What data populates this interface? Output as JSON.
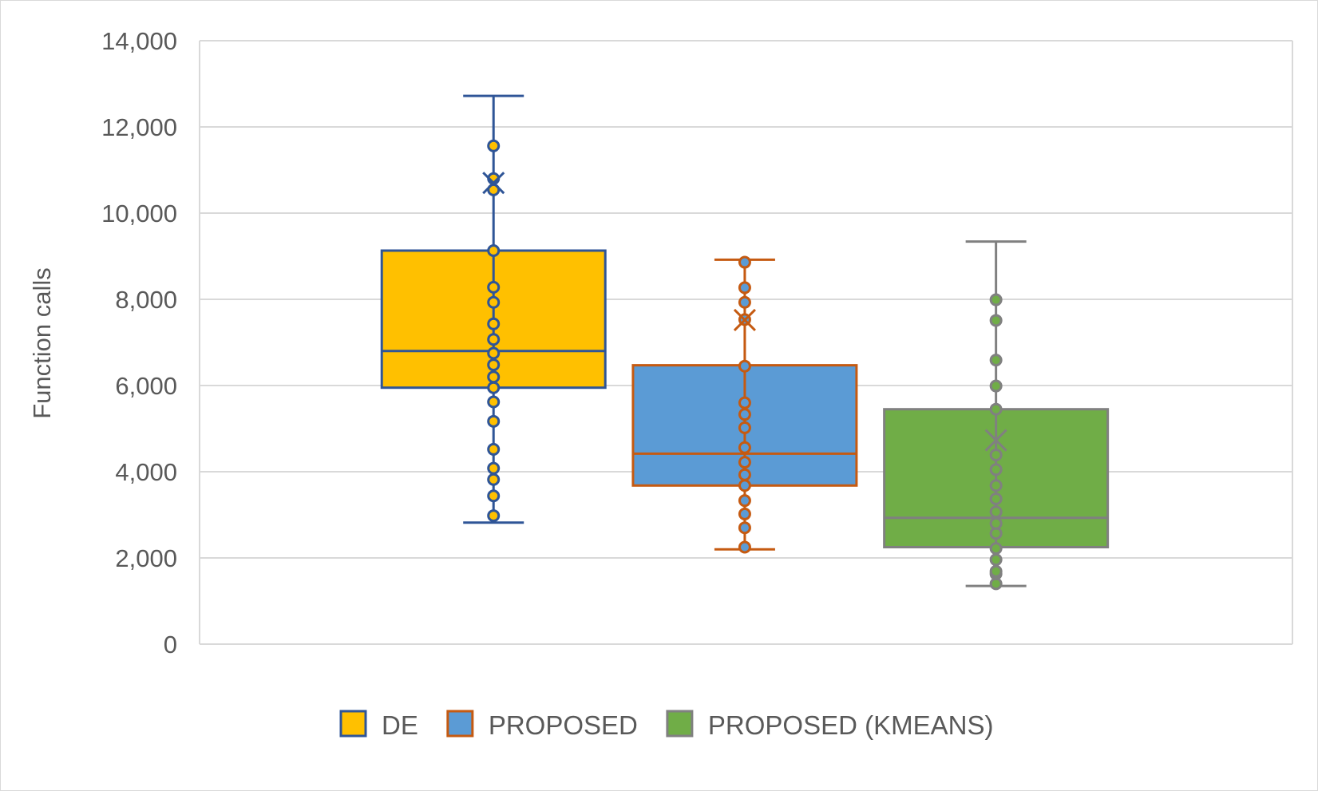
{
  "chart_data": {
    "type": "box",
    "title": "",
    "xlabel": "",
    "ylabel": "Function calls",
    "ylim": [
      0,
      14000
    ],
    "yticks": [
      0,
      2000,
      4000,
      6000,
      8000,
      10000,
      12000,
      14000
    ],
    "ytick_labels": [
      "0",
      "2,000",
      "4,000",
      "6,000",
      "8,000",
      "10,000",
      "12,000",
      "14,000"
    ],
    "grid": true,
    "legend_position": "bottom",
    "series": [
      {
        "name": "DE",
        "fill": "#FFC000",
        "line": "#2F5597",
        "min": 2820,
        "q1": 5950,
        "median": 6800,
        "q3": 9130,
        "max": 12720,
        "mean": 10700,
        "points": [
          2980,
          3440,
          3820,
          4080,
          4520,
          5170,
          5620,
          5950,
          6200,
          6480,
          6750,
          7070,
          7430,
          7930,
          8280,
          9130,
          10540,
          10800,
          11560
        ]
      },
      {
        "name": "PROPOSED",
        "fill": "#5B9BD5",
        "line": "#C55A11",
        "min": 2200,
        "q1": 3680,
        "median": 4420,
        "q3": 6470,
        "max": 8920,
        "mean": 7520,
        "points": [
          2250,
          2700,
          3020,
          3330,
          3680,
          3930,
          4220,
          4560,
          5020,
          5330,
          5600,
          6450,
          7530,
          7930,
          8270,
          8860
        ]
      },
      {
        "name": "PROPOSED (KMEANS)",
        "fill": "#70AD47",
        "line": "#808080",
        "min": 1350,
        "q1": 2250,
        "median": 2930,
        "q3": 5450,
        "max": 9340,
        "mean": 4730,
        "points": [
          1400,
          1630,
          1690,
          1960,
          2220,
          2570,
          2800,
          3070,
          3370,
          3680,
          4050,
          4390,
          5450,
          5990,
          6590,
          7510,
          7990
        ]
      }
    ]
  }
}
